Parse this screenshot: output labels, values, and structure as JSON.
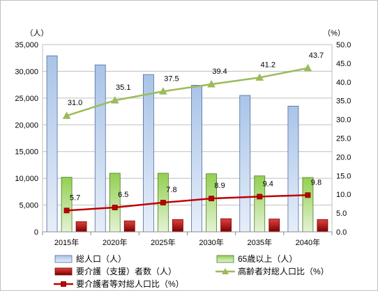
{
  "chart_data": {
    "type": "bar",
    "categories": [
      "2015年",
      "2020年",
      "2025年",
      "2030年",
      "2035年",
      "2040年"
    ],
    "left_axis": {
      "unit": "（人）",
      "ylim": [
        0,
        35000
      ],
      "ticks": [
        "0",
        "5,000",
        "10,000",
        "15,000",
        "20,000",
        "25,000",
        "30,000",
        "35,000"
      ]
    },
    "right_axis": {
      "unit": "（%）",
      "ylim": [
        0,
        50
      ],
      "ticks": [
        "0.0",
        "5.0",
        "10.0",
        "15.0",
        "20.0",
        "25.0",
        "30.0",
        "35.0",
        "40.0",
        "45.0",
        "50.0"
      ]
    },
    "series": [
      {
        "name": "総人口（人）",
        "kind": "bar",
        "axis": "left",
        "color": "#95b3d7",
        "values": [
          32900,
          31200,
          29400,
          27400,
          25500,
          23500
        ]
      },
      {
        "name": "65歳以上（人）",
        "kind": "bar",
        "axis": "left",
        "color": "#92d050",
        "values": [
          10200,
          10950,
          10950,
          10850,
          10450,
          10150
        ]
      },
      {
        "name": "要介護（支援）者数（人）",
        "kind": "bar",
        "axis": "left",
        "color": "#c00000",
        "values": [
          1900,
          2050,
          2300,
          2450,
          2400,
          2300
        ]
      },
      {
        "name": "高齢者対総人口比（%）",
        "kind": "line",
        "axis": "right",
        "color": "#9bbb59",
        "marker": "triangle",
        "values": [
          31.0,
          35.1,
          37.5,
          39.4,
          41.2,
          43.7
        ],
        "labels": [
          "31.0",
          "35.1",
          "37.5",
          "39.4",
          "41.2",
          "43.7"
        ]
      },
      {
        "name": "要介護者等対総人口比（%）",
        "kind": "line",
        "axis": "right",
        "color": "#c00000",
        "marker": "square",
        "values": [
          5.7,
          6.5,
          7.8,
          8.9,
          9.4,
          9.8
        ],
        "labels": [
          "5.7",
          "6.5",
          "7.8",
          "8.9",
          "9.4",
          "9.8"
        ]
      }
    ],
    "grid": true,
    "legend_position": "bottom"
  }
}
